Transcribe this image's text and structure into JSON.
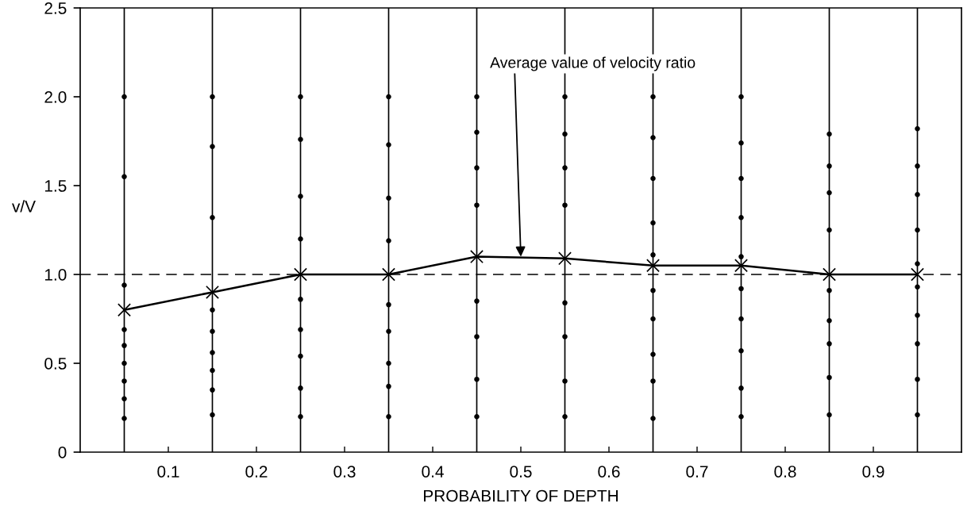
{
  "chart_data": {
    "type": "scatter",
    "xlabel": "PROBABILITY OF DEPTH",
    "ylabel": "v/V",
    "xlim": [
      0,
      1.0
    ],
    "xticks": [
      0.1,
      0.2,
      0.3,
      0.4,
      0.5,
      0.6,
      0.7,
      0.8,
      0.9
    ],
    "ylim": [
      0,
      2.5
    ],
    "yticks": [
      {
        "value": 0,
        "label": "0"
      },
      {
        "value": 0.5,
        "label": "0.5"
      },
      {
        "value": 1.0,
        "label": "1.0"
      },
      {
        "value": 1.5,
        "label": "1.5"
      },
      {
        "value": 2.0,
        "label": "2.0"
      },
      {
        "value": 2.5,
        "label": "2.5"
      }
    ],
    "grid": false,
    "legend": false,
    "series": [
      {
        "color": "#000000",
        "marker": "circle",
        "x": [
          0.05,
          0.05,
          0.05,
          0.05,
          0.05,
          0.05,
          0.05,
          0.05,
          0.05,
          0.15,
          0.15,
          0.15,
          0.15,
          0.15,
          0.15,
          0.15,
          0.15,
          0.15,
          0.25,
          0.25,
          0.25,
          0.25,
          0.25,
          0.25,
          0.25,
          0.25,
          0.25,
          0.35,
          0.35,
          0.35,
          0.35,
          0.35,
          0.35,
          0.35,
          0.35,
          0.35,
          0.45,
          0.45,
          0.45,
          0.45,
          0.45,
          0.45,
          0.45,
          0.45,
          0.55,
          0.55,
          0.55,
          0.55,
          0.55,
          0.55,
          0.55,
          0.55,
          0.65,
          0.65,
          0.65,
          0.65,
          0.65,
          0.65,
          0.65,
          0.65,
          0.65,
          0.65,
          0.75,
          0.75,
          0.75,
          0.75,
          0.75,
          0.75,
          0.75,
          0.75,
          0.75,
          0.75,
          0.85,
          0.85,
          0.85,
          0.85,
          0.85,
          0.85,
          0.85,
          0.85,
          0.85,
          0.95,
          0.95,
          0.95,
          0.95,
          0.95,
          0.95,
          0.95,
          0.95,
          0.95,
          0.95
        ],
        "values": [
          2.0,
          1.55,
          0.94,
          0.69,
          0.6,
          0.5,
          0.4,
          0.3,
          0.19,
          2.0,
          1.72,
          1.32,
          0.8,
          0.68,
          0.56,
          0.46,
          0.35,
          0.21,
          2.0,
          1.76,
          1.44,
          1.2,
          0.86,
          0.69,
          0.54,
          0.36,
          0.2,
          2.0,
          1.73,
          1.43,
          1.19,
          0.83,
          0.68,
          0.5,
          0.37,
          0.2,
          2.0,
          1.8,
          1.6,
          1.39,
          0.85,
          0.65,
          0.41,
          0.2,
          2.0,
          1.79,
          1.6,
          1.39,
          0.84,
          0.65,
          0.4,
          0.2,
          2.0,
          1.77,
          1.54,
          1.29,
          1.11,
          0.91,
          0.75,
          0.55,
          0.4,
          0.19,
          2.0,
          1.74,
          1.54,
          1.32,
          1.1,
          0.92,
          0.75,
          0.57,
          0.36,
          0.2,
          1.79,
          1.61,
          1.46,
          1.25,
          0.91,
          0.74,
          0.61,
          0.42,
          0.21,
          1.82,
          1.61,
          1.45,
          1.25,
          1.06,
          0.93,
          0.77,
          0.61,
          0.41,
          0.21
        ]
      },
      {
        "type": "line",
        "color": "#000000",
        "marker": "cross",
        "line_style": "solid",
        "x": [
          0.05,
          0.15,
          0.25,
          0.35,
          0.45,
          0.55,
          0.65,
          0.75,
          0.85,
          0.95
        ],
        "values": [
          0.8,
          0.9,
          1.0,
          1.0,
          1.1,
          1.09,
          1.05,
          1.05,
          1.0,
          1.0
        ]
      }
    ],
    "ref_lines": [
      {
        "axis": "x",
        "value": 0.05,
        "color": "#000000",
        "line_style": "solid"
      },
      {
        "axis": "x",
        "value": 0.15,
        "color": "#000000",
        "line_style": "solid"
      },
      {
        "axis": "x",
        "value": 0.25,
        "color": "#000000",
        "line_style": "solid"
      },
      {
        "axis": "x",
        "value": 0.35,
        "color": "#000000",
        "line_style": "solid"
      },
      {
        "axis": "x",
        "value": 0.45,
        "color": "#000000",
        "line_style": "solid"
      },
      {
        "axis": "x",
        "value": 0.55,
        "color": "#000000",
        "line_style": "solid"
      },
      {
        "axis": "x",
        "value": 0.65,
        "color": "#000000",
        "line_style": "solid"
      },
      {
        "axis": "x",
        "value": 0.75,
        "color": "#000000",
        "line_style": "solid"
      },
      {
        "axis": "x",
        "value": 0.85,
        "color": "#000000",
        "line_style": "solid"
      },
      {
        "axis": "x",
        "value": 0.95,
        "color": "#000000",
        "line_style": "solid"
      },
      {
        "axis": "y",
        "value": 1.0,
        "color": "#000000",
        "line_style": "dashed"
      }
    ],
    "annotations": [
      {
        "text": "Average value of velocity ratio",
        "x": 0.5,
        "y": 1.1
      }
    ]
  }
}
